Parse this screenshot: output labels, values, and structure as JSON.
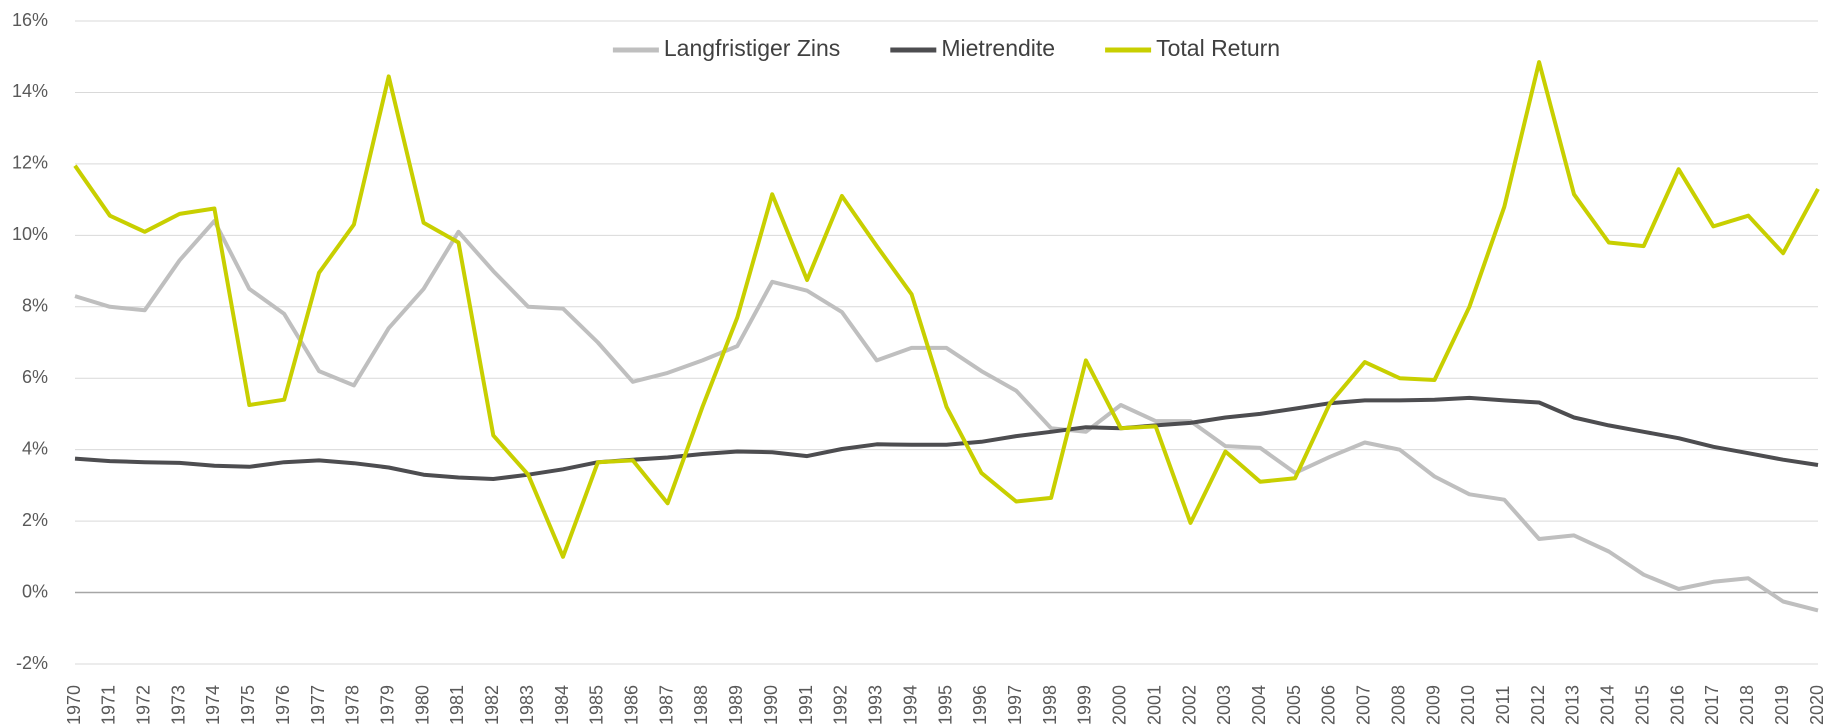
{
  "chart_data": {
    "type": "line",
    "categories": [
      "1970",
      "1971",
      "1972",
      "1973",
      "1974",
      "1975",
      "1976",
      "1977",
      "1978",
      "1979",
      "1980",
      "1981",
      "1982",
      "1983",
      "1984",
      "1985",
      "1986",
      "1987",
      "1988",
      "1989",
      "1990",
      "1991",
      "1992",
      "1993",
      "1994",
      "1995",
      "1996",
      "1997",
      "1998",
      "1999",
      "2000",
      "2001",
      "2002",
      "2003",
      "2004",
      "2005",
      "2006",
      "2007",
      "2008",
      "2009",
      "2010",
      "2011",
      "2012",
      "2013",
      "2014",
      "2015",
      "2016",
      "2017",
      "2018",
      "2019",
      "2020"
    ],
    "series": [
      {
        "name": "Langfristiger Zins",
        "color": "#bfbfbf",
        "values": [
          8.3,
          8.0,
          7.9,
          9.3,
          10.4,
          8.5,
          7.8,
          6.2,
          5.8,
          7.4,
          8.5,
          10.1,
          9.0,
          8.0,
          7.95,
          7.0,
          5.9,
          6.15,
          6.5,
          6.9,
          8.7,
          8.45,
          7.85,
          6.5,
          6.85,
          6.85,
          6.2,
          5.65,
          4.6,
          4.5,
          5.25,
          4.8,
          4.8,
          4.1,
          4.05,
          3.35,
          3.8,
          4.2,
          4.0,
          3.25,
          2.75,
          2.6,
          1.5,
          1.6,
          1.15,
          0.5,
          0.1,
          0.3,
          0.4,
          -0.25,
          -0.5
        ]
      },
      {
        "name": "Mietrendite",
        "color": "#4d4d50",
        "values": [
          3.75,
          3.68,
          3.65,
          3.63,
          3.55,
          3.52,
          3.65,
          3.7,
          3.62,
          3.5,
          3.3,
          3.22,
          3.18,
          3.3,
          3.45,
          3.65,
          3.72,
          3.78,
          3.88,
          3.95,
          3.93,
          3.82,
          4.02,
          4.15,
          4.14,
          4.14,
          4.22,
          4.38,
          4.5,
          4.63,
          4.6,
          4.68,
          4.75,
          4.9,
          5.0,
          5.15,
          5.3,
          5.38,
          5.38,
          5.4,
          5.45,
          5.38,
          5.32,
          4.9,
          4.68,
          4.5,
          4.32,
          4.08,
          3.9,
          3.72,
          3.57
        ]
      },
      {
        "name": "Total Return",
        "color": "#c8cf00",
        "values": [
          11.95,
          10.55,
          10.1,
          10.6,
          10.75,
          5.25,
          5.4,
          8.95,
          10.3,
          14.45,
          10.35,
          9.8,
          4.4,
          3.3,
          1.0,
          3.65,
          3.7,
          2.5,
          5.2,
          7.7,
          11.15,
          8.75,
          11.1,
          9.7,
          8.35,
          5.2,
          3.35,
          2.55,
          2.65,
          6.5,
          4.6,
          4.65,
          1.95,
          3.95,
          3.1,
          3.2,
          5.3,
          6.45,
          6.0,
          5.95,
          8.0,
          10.8,
          14.85,
          11.15,
          9.8,
          9.7,
          11.85,
          10.25,
          10.55,
          9.5,
          11.3
        ]
      }
    ],
    "ylim": [
      -2,
      16
    ],
    "yticks": [
      {
        "value": -2,
        "label": "-2%"
      },
      {
        "value": 0,
        "label": "0%"
      },
      {
        "value": 2,
        "label": "2%"
      },
      {
        "value": 4,
        "label": "4%"
      },
      {
        "value": 6,
        "label": "6%"
      },
      {
        "value": 8,
        "label": "8%"
      },
      {
        "value": 10,
        "label": "10%"
      },
      {
        "value": 12,
        "label": "12%"
      },
      {
        "value": 14,
        "label": "14%"
      },
      {
        "value": 16,
        "label": "16%"
      }
    ],
    "grid": true,
    "legend": "top"
  }
}
